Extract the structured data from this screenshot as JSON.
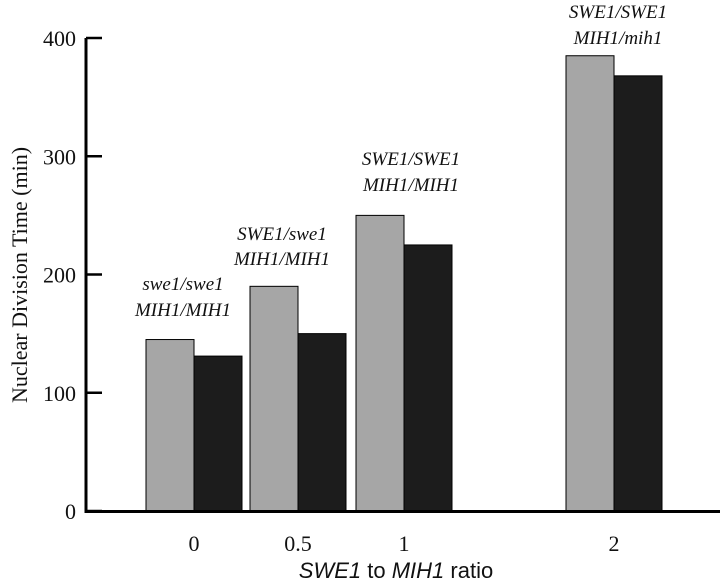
{
  "chart_data": {
    "type": "bar",
    "categories": [
      "0",
      "0.5",
      "1",
      "2"
    ],
    "series": [
      {
        "values": [
          145,
          190,
          250,
          385
        ]
      },
      {
        "values": [
          131,
          150,
          225,
          368
        ]
      }
    ],
    "series_colors": [
      "#a6a6a6",
      "#1c1c1c"
    ],
    "ylabel": "Nuclear Division Time (min)",
    "xlabel": {
      "part1": "SWE1",
      "part2": " to ",
      "part3": "MIH1",
      "part4": " ratio"
    },
    "ylim": [
      0,
      400
    ],
    "yticks": [
      0,
      100,
      200,
      300,
      400
    ],
    "annotations": [
      {
        "category": "0",
        "line1": "swe1/swe1",
        "line2": "MIH1/MIH1"
      },
      {
        "category": "0.5",
        "line1": "SWE1/swe1",
        "line2": "MIH1/MIH1"
      },
      {
        "category": "1",
        "line1": "SWE1/SWE1",
        "line2": "MIH1/MIH1"
      },
      {
        "category": "2",
        "line1": "SWE1/SWE1",
        "line2": "MIH1/mih1"
      }
    ],
    "grid": false,
    "legend": "none"
  }
}
